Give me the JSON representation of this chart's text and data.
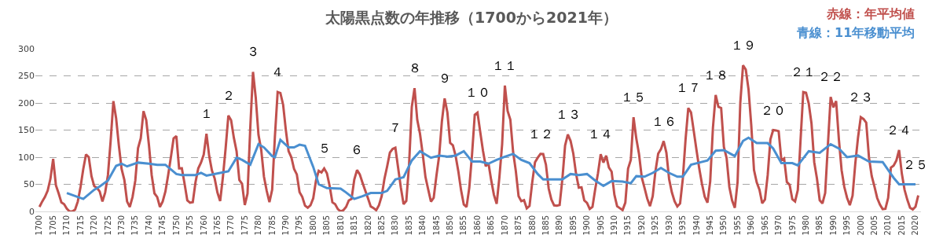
{
  "chart_data": {
    "type": "line",
    "title": "太陽黒点数の年推移（1700から2021年）",
    "x": [
      1700,
      1701,
      1702,
      1703,
      1704,
      1705,
      1706,
      1707,
      1708,
      1709,
      1710,
      1711,
      1712,
      1713,
      1714,
      1715,
      1716,
      1717,
      1718,
      1719,
      1720,
      1721,
      1722,
      1723,
      1724,
      1725,
      1726,
      1727,
      1728,
      1729,
      1730,
      1731,
      1732,
      1733,
      1734,
      1735,
      1736,
      1737,
      1738,
      1739,
      1740,
      1741,
      1742,
      1743,
      1744,
      1745,
      1746,
      1747,
      1748,
      1749,
      1750,
      1751,
      1752,
      1753,
      1754,
      1755,
      1756,
      1757,
      1758,
      1759,
      1760,
      1761,
      1762,
      1763,
      1764,
      1765,
      1766,
      1767,
      1768,
      1769,
      1770,
      1771,
      1772,
      1773,
      1774,
      1775,
      1776,
      1777,
      1778,
      1779,
      1780,
      1781,
      1782,
      1783,
      1784,
      1785,
      1786,
      1787,
      1788,
      1789,
      1790,
      1791,
      1792,
      1793,
      1794,
      1795,
      1796,
      1797,
      1798,
      1799,
      1800,
      1801,
      1802,
      1803,
      1804,
      1805,
      1806,
      1807,
      1808,
      1809,
      1810,
      1811,
      1812,
      1813,
      1814,
      1815,
      1816,
      1817,
      1818,
      1819,
      1820,
      1821,
      1822,
      1823,
      1824,
      1825,
      1826,
      1827,
      1828,
      1829,
      1830,
      1831,
      1832,
      1833,
      1834,
      1835,
      1836,
      1837,
      1838,
      1839,
      1840,
      1841,
      1842,
      1843,
      1844,
      1845,
      1846,
      1847,
      1848,
      1849,
      1850,
      1851,
      1852,
      1853,
      1854,
      1855,
      1856,
      1857,
      1858,
      1859,
      1860,
      1861,
      1862,
      1863,
      1864,
      1865,
      1866,
      1867,
      1868,
      1869,
      1870,
      1871,
      1872,
      1873,
      1874,
      1875,
      1876,
      1877,
      1878,
      1879,
      1880,
      1881,
      1882,
      1883,
      1884,
      1885,
      1886,
      1887,
      1888,
      1889,
      1890,
      1891,
      1892,
      1893,
      1894,
      1895,
      1896,
      1897,
      1898,
      1899,
      1900,
      1901,
      1902,
      1903,
      1904,
      1905,
      1906,
      1907,
      1908,
      1909,
      1910,
      1911,
      1912,
      1913,
      1914,
      1915,
      1916,
      1917,
      1918,
      1919,
      1920,
      1921,
      1922,
      1923,
      1924,
      1925,
      1926,
      1927,
      1928,
      1929,
      1930,
      1931,
      1932,
      1933,
      1934,
      1935,
      1936,
      1937,
      1938,
      1939,
      1940,
      1941,
      1942,
      1943,
      1944,
      1945,
      1946,
      1947,
      1948,
      1949,
      1950,
      1951,
      1952,
      1953,
      1954,
      1955,
      1956,
      1957,
      1958,
      1959,
      1960,
      1961,
      1962,
      1963,
      1964,
      1965,
      1966,
      1967,
      1968,
      1969,
      1970,
      1971,
      1972,
      1973,
      1974,
      1975,
      1976,
      1977,
      1978,
      1979,
      1980,
      1981,
      1982,
      1983,
      1984,
      1985,
      1986,
      1987,
      1988,
      1989,
      1990,
      1991,
      1992,
      1993,
      1994,
      1995,
      1996,
      1997,
      1998,
      1999,
      2000,
      2001,
      2002,
      2003,
      2004,
      2005,
      2006,
      2007,
      2008,
      2009,
      2010,
      2011,
      2012,
      2013,
      2014,
      2015,
      2016,
      2017,
      2018,
      2019,
      2020,
      2021
    ],
    "series": [
      {
        "name": "赤線：年平均値",
        "color": "#c0504d",
        "values": [
          8.3,
          18.3,
          26.7,
          38.3,
          60.0,
          96.7,
          48.3,
          33.3,
          16.7,
          13.3,
          5.0,
          0.0,
          0.0,
          3.3,
          18.3,
          45.0,
          78.3,
          105.0,
          100.0,
          65.0,
          46.7,
          43.3,
          36.7,
          18.3,
          35.0,
          66.7,
          130.0,
          203.3,
          171.7,
          121.7,
          78.3,
          58.3,
          18.3,
          8.3,
          26.7,
          56.7,
          116.7,
          135.0,
          185.0,
          168.3,
          121.7,
          66.7,
          33.3,
          26.7,
          8.3,
          18.3,
          36.7,
          66.7,
          100.0,
          134.8,
          139.0,
          79.5,
          79.7,
          51.2,
          20.3,
          16.0,
          17.0,
          54.0,
          79.3,
          90.0,
          104.8,
          143.2,
          102.0,
          75.2,
          60.7,
          34.8,
          19.0,
          63.0,
          116.3,
          176.8,
          168.0,
          136.0,
          110.8,
          58.0,
          51.0,
          11.7,
          33.0,
          154.2,
          257.3,
          209.8,
          141.3,
          113.5,
          64.2,
          38.0,
          17.0,
          40.2,
          138.2,
          220.0,
          218.2,
          196.8,
          149.8,
          111.0,
          100.0,
          78.2,
          68.3,
          35.5,
          26.7,
          10.7,
          6.8,
          11.3,
          24.2,
          56.7,
          75.0,
          71.8,
          79.2,
          70.3,
          46.8,
          16.8,
          13.5,
          4.2,
          0.0,
          2.3,
          8.3,
          20.3,
          23.2,
          59.0,
          76.3,
          68.3,
          52.9,
          38.5,
          24.2,
          9.2,
          6.3,
          2.2,
          11.4,
          28.2,
          59.9,
          83.0,
          108.5,
          115.2,
          117.4,
          80.8,
          44.3,
          13.4,
          19.5,
          85.8,
          192.7,
          227.3,
          168.7,
          143.0,
          105.5,
          63.3,
          40.3,
          18.1,
          25.1,
          65.8,
          102.7,
          166.3,
          208.3,
          182.5,
          126.3,
          122.0,
          102.7,
          74.1,
          39.0,
          12.7,
          8.2,
          43.4,
          104.4,
          178.3,
          182.2,
          146.6,
          112.1,
          83.5,
          89.2,
          57.8,
          30.7,
          13.9,
          62.8,
          123.6,
          232.0,
          185.3,
          169.2,
          110.1,
          74.5,
          28.3,
          18.9,
          20.7,
          5.7,
          10.0,
          53.7,
          90.5,
          99.0,
          106.1,
          105.8,
          86.3,
          42.4,
          21.8,
          11.2,
          10.4,
          11.8,
          59.5,
          121.7,
          142.0,
          130.0,
          106.6,
          69.4,
          43.8,
          44.4,
          20.2,
          15.7,
          4.6,
          8.5,
          40.8,
          70.1,
          105.5,
          90.1,
          102.8,
          80.9,
          73.2,
          30.9,
          9.5,
          6.0,
          2.4,
          16.1,
          79.0,
          95.0,
          173.6,
          134.6,
          105.7,
          62.7,
          43.5,
          23.7,
          9.7,
          27.9,
          74.0,
          106.5,
          114.7,
          129.7,
          108.2,
          59.4,
          35.1,
          18.6,
          9.2,
          14.6,
          60.2,
          132.8,
          190.6,
          182.6,
          148.0,
          113.0,
          79.2,
          50.8,
          27.1,
          16.1,
          55.3,
          154.3,
          214.7,
          193.0,
          190.7,
          118.9,
          98.3,
          45.0,
          20.1,
          6.6,
          54.2,
          200.7,
          269.3,
          261.7,
          225.1,
          159.0,
          76.4,
          53.4,
          39.9,
          15.0,
          22.0,
          66.8,
          132.9,
          150.0,
          149.4,
          148.0,
          94.4,
          97.6,
          54.1,
          49.2,
          22.5,
          18.4,
          39.3,
          131.0,
          220.1,
          218.9,
          198.9,
          162.4,
          91.0,
          60.5,
          20.6,
          14.8,
          33.9,
          123.0,
          211.1,
          191.8,
          203.3,
          133.0,
          76.1,
          44.9,
          25.1,
          11.6,
          28.9,
          88.3,
          136.3,
          173.9,
          170.4,
          163.6,
          99.3,
          65.3,
          45.8,
          24.7,
          12.6,
          4.2,
          4.8,
          24.9,
          80.8,
          84.5,
          94.0,
          113.3,
          69.8,
          39.8,
          21.7,
          7.0,
          3.6,
          8.8,
          29.6
        ]
      },
      {
        "name": "青線：11年移動平均",
        "color": "#4a8fd0",
        "x": [
          1710,
          1716,
          1720,
          1722,
          1725,
          1728,
          1730,
          1732,
          1736,
          1740,
          1743,
          1746,
          1750,
          1752,
          1757,
          1759,
          1761,
          1766,
          1769,
          1772,
          1774,
          1777,
          1780,
          1782,
          1785,
          1786,
          1788,
          1791,
          1793,
          1795,
          1797,
          1800,
          1802,
          1805,
          1810,
          1812,
          1815,
          1818,
          1821,
          1825,
          1827,
          1830,
          1833,
          1836,
          1839,
          1843,
          1846,
          1849,
          1852,
          1855,
          1858,
          1861,
          1864,
          1867,
          1870,
          1873,
          1876,
          1879,
          1882,
          1884,
          1888,
          1891,
          1894,
          1897,
          1900,
          1903,
          1906,
          1909,
          1913,
          1916,
          1918,
          1921,
          1924,
          1927,
          1930,
          1933,
          1935,
          1938,
          1941,
          1944,
          1947,
          1950,
          1954,
          1957,
          1959,
          1962,
          1966,
          1968,
          1971,
          1975,
          1977,
          1981,
          1985,
          1989,
          1992,
          1995,
          1999,
          2003,
          2008,
          2012,
          2014,
          2017,
          2020
        ],
        "values": [
          34,
          23,
          40,
          46,
          57,
          84,
          88,
          83,
          90,
          88,
          86,
          86,
          69,
          67,
          67,
          71,
          66,
          71,
          74,
          99,
          95,
          86,
          124,
          118,
          102,
          100,
          132,
          118,
          118,
          123,
          121,
          82,
          50,
          43,
          42,
          35,
          23,
          28,
          34,
          34,
          38,
          59,
          63,
          94,
          111,
          99,
          103,
          101,
          103,
          111,
          92,
          92,
          88,
          95,
          101,
          106,
          95,
          89,
          69,
          59,
          59,
          59,
          69,
          67,
          69,
          57,
          47,
          56,
          55,
          52,
          65,
          64,
          71,
          80,
          71,
          64,
          64,
          86,
          90,
          94,
          112,
          113,
          102,
          130,
          136,
          126,
          126,
          116,
          89,
          89,
          85,
          111,
          108,
          124,
          116,
          100,
          103,
          92,
          91,
          62,
          50,
          50,
          50
        ]
      }
    ],
    "xlim": [
      1698.5,
      2022
    ],
    "xticks": [
      1700,
      1705,
      1710,
      1715,
      1720,
      1725,
      1730,
      1735,
      1740,
      1745,
      1750,
      1755,
      1760,
      1765,
      1770,
      1775,
      1780,
      1785,
      1790,
      1795,
      1800,
      1805,
      1810,
      1815,
      1820,
      1825,
      1830,
      1835,
      1840,
      1845,
      1850,
      1855,
      1860,
      1865,
      1870,
      1875,
      1880,
      1885,
      1890,
      1895,
      1900,
      1905,
      1910,
      1915,
      1920,
      1925,
      1930,
      1935,
      1940,
      1945,
      1950,
      1955,
      1960,
      1965,
      1970,
      1975,
      1980,
      1985,
      1990,
      1995,
      2000,
      2005,
      2010,
      2015,
      2020
    ],
    "ylim": [
      0,
      300
    ],
    "yticks": [
      0,
      50,
      100,
      150,
      200,
      250,
      300
    ],
    "grid": "y",
    "line_style": "solid",
    "marker": "none",
    "legend": "top right",
    "annotations": [
      {
        "text": "１",
        "x": 1761,
        "y": 143.2
      },
      {
        "text": "２",
        "x": 1769,
        "y": 176.8
      },
      {
        "text": "３",
        "x": 1778,
        "y": 257.3
      },
      {
        "text": "４",
        "x": 1787,
        "y": 220.0
      },
      {
        "text": "５",
        "x": 1804,
        "y": 79.2
      },
      {
        "text": "６",
        "x": 1816,
        "y": 76.3
      },
      {
        "text": "７",
        "x": 1830,
        "y": 117.4
      },
      {
        "text": "８",
        "x": 1837,
        "y": 227.3
      },
      {
        "text": "９",
        "x": 1848,
        "y": 208.3
      },
      {
        "text": "１０",
        "x": 1860,
        "y": 182.2
      },
      {
        "text": "１１",
        "x": 1870,
        "y": 232.0
      },
      {
        "text": "１２",
        "x": 1883,
        "y": 106.1
      },
      {
        "text": "１３",
        "x": 1893,
        "y": 142.0
      },
      {
        "text": "１４",
        "x": 1905,
        "y": 105.5
      },
      {
        "text": "１５",
        "x": 1917,
        "y": 173.6
      },
      {
        "text": "１６",
        "x": 1928,
        "y": 129.7
      },
      {
        "text": "１７",
        "x": 1937,
        "y": 190.6
      },
      {
        "text": "１８",
        "x": 1947,
        "y": 214.7
      },
      {
        "text": "１９",
        "x": 1957,
        "y": 269.3
      },
      {
        "text": "２０",
        "x": 1968,
        "y": 150.0
      },
      {
        "text": "２１",
        "x": 1979,
        "y": 220.1
      },
      {
        "text": "２２",
        "x": 1989,
        "y": 211.1
      },
      {
        "text": "２３",
        "x": 2000,
        "y": 173.9
      },
      {
        "text": "２４",
        "x": 2014,
        "y": 113.3
      },
      {
        "text": "２５",
        "x": 2020,
        "y": 50
      }
    ]
  }
}
